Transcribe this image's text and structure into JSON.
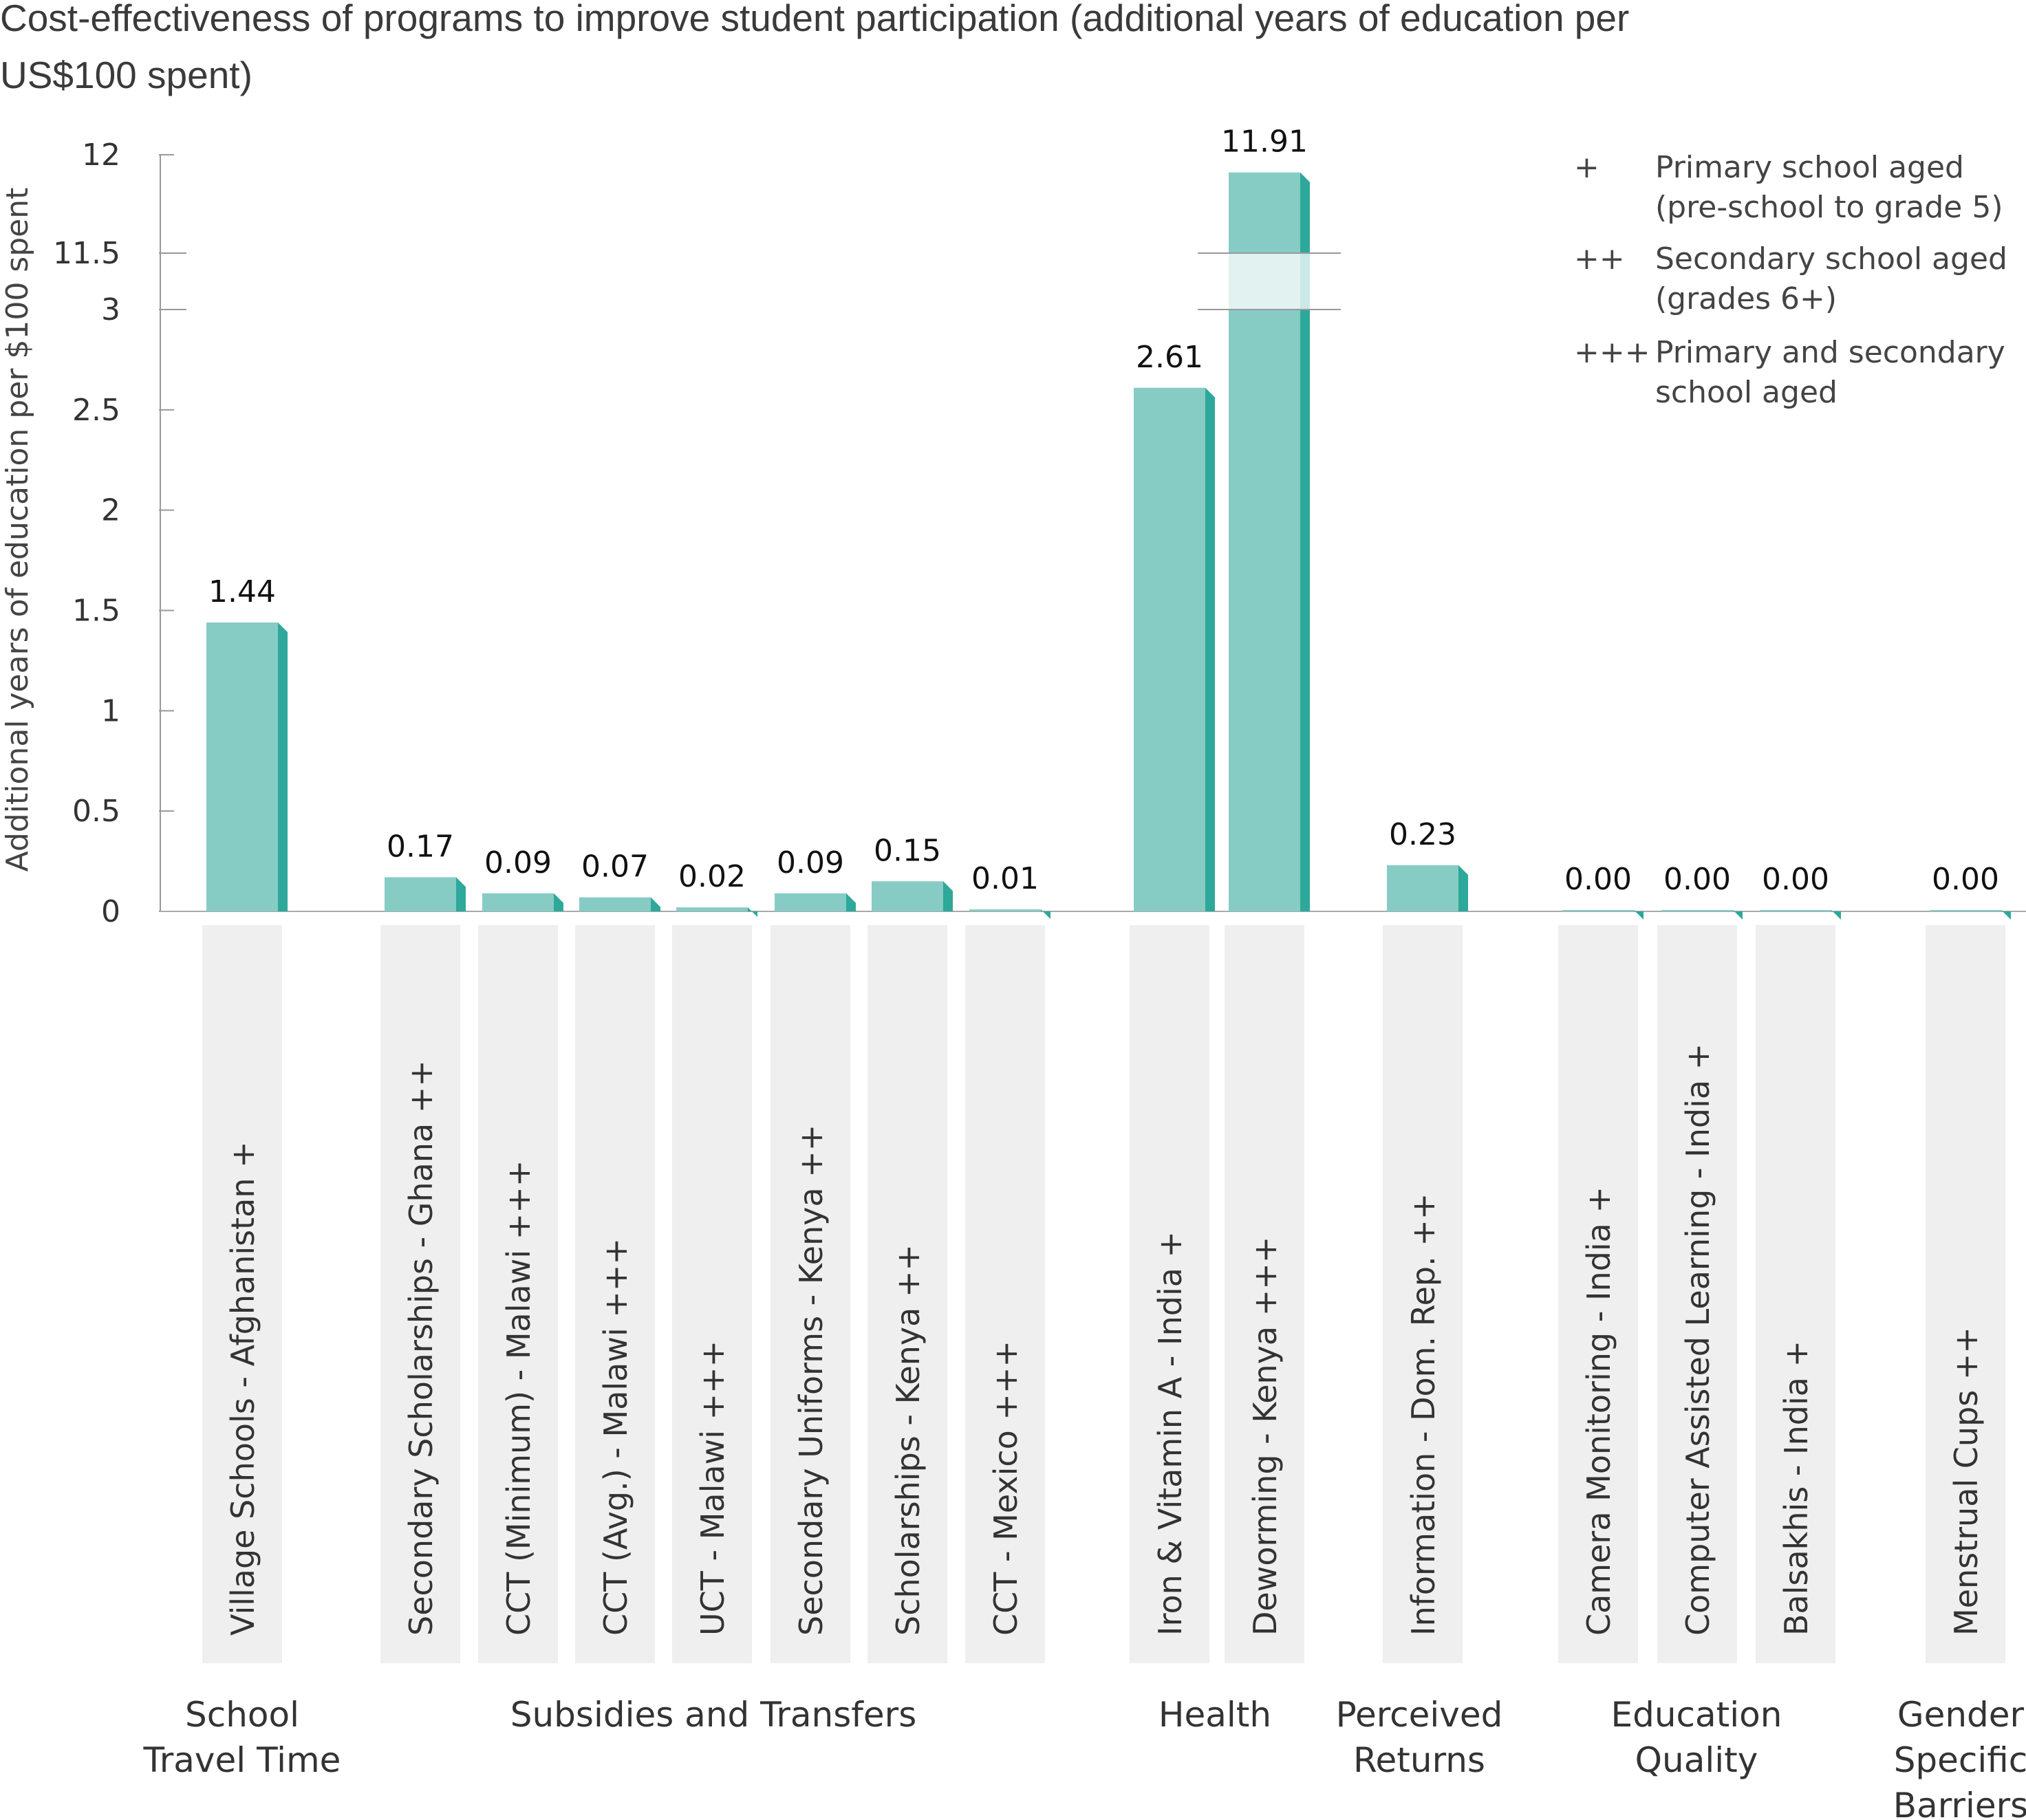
{
  "chart_data": {
    "type": "bar",
    "title": "Cost-effectiveness of programs to improve student participation (additional years of education per US$100 spent)",
    "title_lines": [
      "Cost-effectiveness of programs to improve student participation (additional years of education per",
      "US$100 spent)"
    ],
    "ylabel": "Additional years of education per $100 spent",
    "ylim": [
      0,
      12
    ],
    "axis_break": [
      3,
      11.5
    ],
    "yticks": [
      "0",
      "0.5",
      "1",
      "1.5",
      "2",
      "2.5",
      "3",
      "11.5",
      "12"
    ],
    "bar_color": "#86ccc4",
    "bar_side_color": "#2da89a",
    "label_bg_color": "#efefef",
    "categories": [
      "Village Schools - Afghanistan +",
      "Secondary Scholarships - Ghana ++",
      "CCT (Minimum) - Malawi +++",
      "CCT (Avg.) - Malawi +++",
      "UCT - Malawi +++",
      "Secondary Uniforms - Kenya ++",
      "Scholarships - Kenya ++",
      "CCT - Mexico +++",
      "Iron & Vitamin A - India +",
      "Deworming - Kenya +++",
      "Information - Dom. Rep. ++",
      "Camera Monitoring - India +",
      "Computer Assisted Learning - India +",
      "Balsakhis - India +",
      "Menstrual Cups ++"
    ],
    "values": [
      1.44,
      0.17,
      0.09,
      0.07,
      0.02,
      0.09,
      0.15,
      0.01,
      2.61,
      11.91,
      0.23,
      0.0,
      0.0,
      0.0,
      0.0
    ],
    "value_labels": [
      "1.44",
      "0.17",
      "0.09",
      "0.07",
      "0.02",
      "0.09",
      "0.15",
      "0.01",
      "2.61",
      "11.91",
      "0.23",
      "0.00",
      "0.00",
      "0.00",
      "0.00"
    ],
    "groups": [
      {
        "lines": [
          "School",
          "Travel Time"
        ]
      },
      {
        "lines": [
          "Subsidies and Transfers"
        ]
      },
      {
        "lines": [
          "Health"
        ]
      },
      {
        "lines": [
          "Perceived",
          "Returns"
        ]
      },
      {
        "lines": [
          "Education",
          "Quality"
        ]
      },
      {
        "lines": [
          "Gender",
          "Specific",
          "Barriers"
        ]
      }
    ],
    "legend": {
      "placement": "top-right",
      "entries": [
        {
          "symbol": "+",
          "lines": [
            "Primary school aged",
            "(pre-school to grade 5)"
          ]
        },
        {
          "symbol": "++",
          "lines": [
            "Secondary school aged",
            "(grades 6+)"
          ]
        },
        {
          "symbol": "+++",
          "lines": [
            "Primary and secondary",
            "school aged"
          ]
        }
      ]
    }
  }
}
